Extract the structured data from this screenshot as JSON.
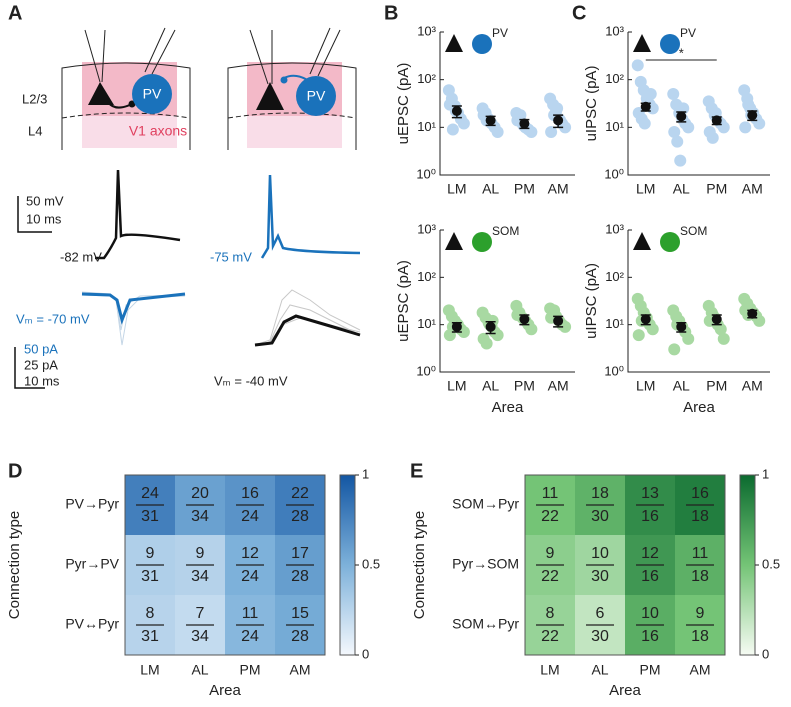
{
  "panel_labels": [
    "A",
    "B",
    "C",
    "D",
    "E"
  ],
  "panel_a": {
    "layer_labels": [
      "L2/3",
      "L4"
    ],
    "cell_labels": [
      "PV",
      "PV"
    ],
    "axon_label": "V1 axons",
    "voltage_scale": [
      "50 mV",
      "10 ms"
    ],
    "rest_potentials": [
      "-82 mV",
      "-75 mV"
    ],
    "current_scale": [
      "50 pA",
      "25 pA",
      "10 ms"
    ],
    "holding_potentials": [
      "Vₘ = -70 mV",
      "Vₘ = -40 mV"
    ]
  },
  "chart_data": [
    {
      "type": "dot",
      "panel": "B",
      "inset_label": "PV",
      "ylabel": "uEPSC (pA)",
      "categories": [
        "LM",
        "AL",
        "PM",
        "AM"
      ],
      "points": [
        [
          60,
          40,
          28,
          20,
          15,
          12,
          30,
          9,
          22
        ],
        [
          25,
          20,
          15,
          12,
          10,
          8,
          18,
          14
        ],
        [
          20,
          15,
          12,
          10,
          9,
          8,
          14,
          18,
          11
        ],
        [
          40,
          30,
          22,
          15,
          12,
          10,
          8,
          18,
          25,
          14
        ]
      ],
      "means": [
        22,
        14,
        12,
        14
      ],
      "errors": [
        6,
        3,
        2.5,
        4
      ],
      "color": "#b9d5ef",
      "ylim": [
        1,
        1000
      ],
      "log_scale": true,
      "yticks": [
        {
          "value": 1,
          "label": "10⁰"
        },
        {
          "value": 10,
          "label": "10¹"
        },
        {
          "value": 100,
          "label": "10²"
        },
        {
          "value": 1000,
          "label": "10³"
        }
      ]
    },
    {
      "type": "dot",
      "panel": "B",
      "inset_label": "SOM",
      "ylabel": "uEPSC (pA)",
      "xlabel": "Area",
      "categories": [
        "LM",
        "AL",
        "PM",
        "AM"
      ],
      "points": [
        [
          20,
          15,
          12,
          10,
          8,
          7,
          6,
          9,
          11
        ],
        [
          18,
          14,
          11,
          9,
          7,
          6,
          5,
          4,
          10,
          12
        ],
        [
          25,
          18,
          14,
          12,
          10,
          8,
          16
        ],
        [
          22,
          18,
          15,
          12,
          10,
          9,
          14,
          20
        ]
      ],
      "means": [
        9,
        9,
        13,
        12
      ],
      "errors": [
        2,
        2.5,
        3,
        3
      ],
      "color": "#a8d9a2",
      "ylim": [
        1,
        1000
      ],
      "log_scale": true,
      "yticks": [
        {
          "value": 1,
          "label": "10⁰"
        },
        {
          "value": 10,
          "label": "10¹"
        },
        {
          "value": 100,
          "label": "10²"
        },
        {
          "value": 1000,
          "label": "10³"
        }
      ]
    },
    {
      "type": "dot",
      "panel": "C",
      "inset_label": "PV",
      "ylabel": "uIPSC (pA)",
      "annotation": "*",
      "categories": [
        "LM",
        "AL",
        "PM",
        "AM"
      ],
      "points": [
        [
          200,
          90,
          60,
          40,
          30,
          25,
          20,
          15,
          12,
          35,
          50
        ],
        [
          50,
          30,
          20,
          15,
          12,
          10,
          8,
          5,
          2,
          25
        ],
        [
          35,
          25,
          18,
          14,
          12,
          10,
          8,
          6,
          20
        ],
        [
          60,
          40,
          25,
          20,
          15,
          12,
          10,
          30,
          18
        ]
      ],
      "means": [
        27,
        17,
        14,
        18
      ],
      "errors": [
        5,
        4,
        2.5,
        4
      ],
      "color": "#b9d5ef",
      "ylim": [
        1,
        1000
      ],
      "log_scale": true,
      "yticks": [
        {
          "value": 1,
          "label": "10⁰"
        },
        {
          "value": 10,
          "label": "10¹"
        },
        {
          "value": 100,
          "label": "10²"
        },
        {
          "value": 1000,
          "label": "10³"
        }
      ]
    },
    {
      "type": "dot",
      "panel": "C",
      "inset_label": "SOM",
      "ylabel": "uIPSC (pA)",
      "xlabel": "Area",
      "categories": [
        "LM",
        "AL",
        "PM",
        "AM"
      ],
      "points": [
        [
          35,
          25,
          18,
          14,
          10,
          8,
          6,
          12
        ],
        [
          20,
          15,
          12,
          9,
          7,
          5,
          3,
          10
        ],
        [
          25,
          18,
          14,
          10,
          8,
          5,
          12,
          16
        ],
        [
          35,
          28,
          22,
          18,
          15,
          12,
          20,
          16
        ]
      ],
      "means": [
        13,
        9,
        13,
        17
      ],
      "errors": [
        3,
        2,
        3,
        3
      ],
      "color": "#a8d9a2",
      "ylim": [
        1,
        1000
      ],
      "log_scale": true,
      "yticks": [
        {
          "value": 1,
          "label": "10⁰"
        },
        {
          "value": 10,
          "label": "10¹"
        },
        {
          "value": 100,
          "label": "10²"
        },
        {
          "value": 1000,
          "label": "10³"
        }
      ]
    },
    {
      "type": "heatmap",
      "panel": "D",
      "ylabel": "Connection type",
      "xlabel": "Area",
      "categories": [
        "LM",
        "AL",
        "PM",
        "AM"
      ],
      "row_labels": [
        "PV→Pyr",
        "Pyr→PV",
        "PV↔Pyr"
      ],
      "numerators": [
        [
          24,
          20,
          16,
          22
        ],
        [
          9,
          9,
          12,
          17
        ],
        [
          8,
          7,
          11,
          15
        ]
      ],
      "denominators": [
        [
          31,
          34,
          24,
          28
        ],
        [
          31,
          34,
          24,
          28
        ],
        [
          31,
          34,
          24,
          28
        ]
      ],
      "clim": [
        0,
        1
      ],
      "cticks": [
        0,
        0.5,
        1
      ],
      "colormap": [
        "#f4f8fd",
        "#7db1da",
        "#1356a3"
      ]
    },
    {
      "type": "heatmap",
      "panel": "E",
      "ylabel": "Connection type",
      "xlabel": "Area",
      "categories": [
        "LM",
        "AL",
        "PM",
        "AM"
      ],
      "row_labels": [
        "SOM→Pyr",
        "Pyr→SOM",
        "SOM↔Pyr"
      ],
      "numerators": [
        [
          11,
          18,
          13,
          16
        ],
        [
          9,
          10,
          12,
          11
        ],
        [
          8,
          6,
          10,
          9
        ]
      ],
      "denominators": [
        [
          22,
          30,
          16,
          18
        ],
        [
          22,
          30,
          16,
          18
        ],
        [
          22,
          30,
          16,
          18
        ]
      ],
      "clim": [
        0,
        1
      ],
      "cticks": [
        0,
        0.5,
        1
      ],
      "colormap": [
        "#f6fbf3",
        "#74c476",
        "#0b6a2f"
      ]
    }
  ]
}
